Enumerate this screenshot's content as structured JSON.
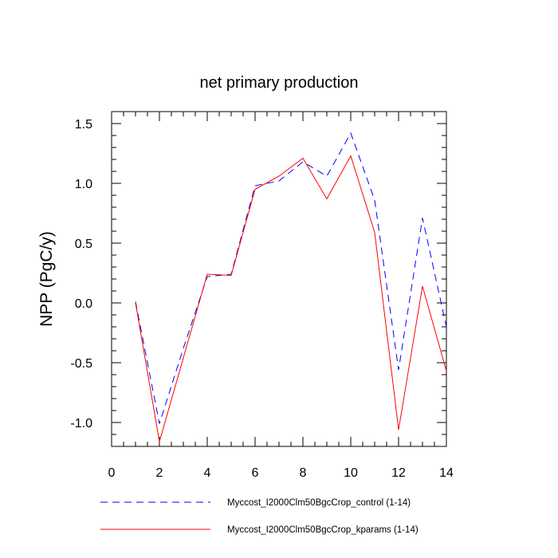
{
  "chart_data": {
    "type": "line",
    "title": "net primary production",
    "xlabel": "",
    "ylabel": "NPP  (PgC/y)",
    "xlim": [
      0,
      14
    ],
    "ylim": [
      -1.2,
      1.6
    ],
    "xticks": [
      0,
      2,
      4,
      6,
      8,
      10,
      12,
      14
    ],
    "xtick_labels": [
      "0",
      "2",
      "4",
      "6",
      "8",
      "10",
      "12",
      "14"
    ],
    "yticks": [
      -1.0,
      -0.5,
      0.0,
      0.5,
      1.0,
      1.5
    ],
    "ytick_labels": [
      "-1.0",
      "-0.5",
      "0.0",
      "0.5",
      "1.0",
      "1.5"
    ],
    "grid": false,
    "legend_position": "bottom",
    "x": [
      1,
      2,
      3,
      4,
      5,
      6,
      7,
      8,
      9,
      10,
      11,
      12,
      13,
      14
    ],
    "series": [
      {
        "name": "Myccost_I2000Clm50BgcCrop_control (1-14)",
        "color": "#0000ff",
        "dash": "dashed",
        "values": [
          0.01,
          -1.01,
          -0.38,
          0.22,
          0.24,
          0.98,
          1.02,
          1.18,
          1.06,
          1.42,
          0.86,
          -0.56,
          0.71,
          -0.2
        ]
      },
      {
        "name": "Myccost_I2000Clm50BgcCrop_kparams (1-14)",
        "color": "#ff0000",
        "dash": "solid",
        "values": [
          0.0,
          -1.16,
          -0.46,
          0.24,
          0.23,
          0.95,
          1.06,
          1.21,
          0.87,
          1.23,
          0.59,
          -1.06,
          0.14,
          -0.57
        ]
      }
    ]
  }
}
